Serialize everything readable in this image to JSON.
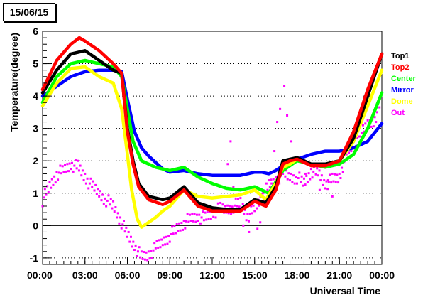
{
  "chart_data": {
    "type": "scatter",
    "title": "15/06/15",
    "xlabel": "Universal Time",
    "ylabel": "Temperature(degree)",
    "xlim": [
      0,
      24
    ],
    "ylim": [
      -1.2,
      6
    ],
    "x_ticks": [
      0,
      3,
      6,
      9,
      12,
      15,
      18,
      21,
      24
    ],
    "x_tick_labels": [
      "00:00",
      "03:00",
      "06:00",
      "09:00",
      "12:00",
      "15:00",
      "18:00",
      "21:00",
      "00:00"
    ],
    "y_ticks": [
      -1,
      0,
      1,
      2,
      3,
      4,
      5,
      6
    ],
    "y_tick_labels": [
      "-1",
      "0",
      "1",
      "2",
      "3",
      "4",
      "5",
      "6"
    ],
    "grid": "horizontal dotted",
    "zero_line": true,
    "legend_position": "right",
    "series": [
      {
        "name": "Top1",
        "color": "#000000",
        "x": [
          0,
          1,
          2,
          3,
          4,
          5,
          5.6,
          6,
          6.4,
          6.8,
          7.5,
          8.5,
          9,
          10,
          11,
          12,
          13,
          14,
          15,
          15.8,
          16.5,
          17,
          17.5,
          18,
          19,
          20,
          21,
          22,
          23,
          24
        ],
        "y": [
          4.1,
          4.8,
          5.3,
          5.4,
          5.1,
          4.8,
          4.7,
          3.0,
          2.0,
          1.3,
          0.9,
          0.8,
          0.85,
          1.2,
          0.7,
          0.55,
          0.5,
          0.5,
          0.8,
          0.7,
          1.2,
          2.0,
          2.05,
          2.1,
          1.9,
          1.9,
          2.0,
          2.7,
          4.0,
          5.3
        ]
      },
      {
        "name": "Top2",
        "color": "#ff0000",
        "x": [
          0,
          1,
          2,
          2.6,
          3,
          4,
          5,
          5.6,
          6,
          6.4,
          6.8,
          7.5,
          8.5,
          9,
          10,
          11,
          12,
          13,
          14,
          15,
          15.8,
          16.5,
          17,
          17.5,
          18,
          19,
          20,
          21,
          22,
          23,
          24
        ],
        "y": [
          4.2,
          5.1,
          5.6,
          5.8,
          5.7,
          5.4,
          5.0,
          4.7,
          2.9,
          1.9,
          1.2,
          0.8,
          0.65,
          0.75,
          1.1,
          0.6,
          0.45,
          0.45,
          0.45,
          0.75,
          0.6,
          1.1,
          1.9,
          2.0,
          2.05,
          1.85,
          1.85,
          2.0,
          2.9,
          4.2,
          5.3
        ]
      },
      {
        "name": "Center",
        "color": "#00ff00",
        "x": [
          0,
          1,
          2,
          3,
          4,
          5,
          5.6,
          6,
          6.4,
          7,
          8,
          9,
          10,
          11,
          12,
          13,
          14,
          15,
          16,
          17,
          18,
          19,
          20,
          21,
          22,
          23,
          24
        ],
        "y": [
          3.8,
          4.6,
          5.0,
          5.1,
          5.0,
          4.9,
          4.6,
          3.6,
          2.6,
          2.0,
          1.8,
          1.7,
          1.8,
          1.5,
          1.3,
          1.15,
          1.1,
          1.2,
          1.0,
          1.7,
          2.0,
          1.9,
          1.8,
          1.9,
          2.2,
          3.0,
          4.1
        ]
      },
      {
        "name": "Mirror",
        "color": "#0000ff",
        "x": [
          0,
          1,
          2,
          3,
          4,
          5,
          5.6,
          6,
          6.5,
          7,
          7.5,
          8,
          8.5,
          9,
          10,
          11,
          12,
          13,
          14,
          15,
          15.5,
          16,
          16.5,
          17,
          17.5,
          18,
          19,
          20,
          21,
          22,
          23,
          24
        ],
        "y": [
          4.0,
          4.3,
          4.6,
          4.75,
          4.8,
          4.8,
          4.75,
          3.9,
          2.9,
          2.4,
          2.15,
          1.95,
          1.75,
          1.65,
          1.7,
          1.6,
          1.55,
          1.55,
          1.55,
          1.65,
          1.65,
          1.6,
          1.7,
          1.85,
          1.95,
          2.05,
          2.2,
          2.3,
          2.3,
          2.4,
          2.6,
          3.15
        ]
      },
      {
        "name": "Dome",
        "color": "#ffff00",
        "x": [
          0,
          1,
          2,
          3,
          4,
          5,
          5.6,
          6,
          6.3,
          6.7,
          7,
          7.5,
          8,
          8.5,
          9,
          10,
          11,
          12,
          13,
          14,
          15,
          15.8,
          16.5,
          17,
          17.5,
          18,
          19,
          20,
          21,
          22,
          23,
          24
        ],
        "y": [
          3.7,
          4.4,
          4.85,
          4.9,
          4.6,
          4.4,
          3.6,
          2.2,
          1.1,
          0.2,
          -0.05,
          0.1,
          0.25,
          0.45,
          0.6,
          1.1,
          0.9,
          0.85,
          0.9,
          0.95,
          1.1,
          0.8,
          1.3,
          1.8,
          1.9,
          2.05,
          1.9,
          1.9,
          2.0,
          2.6,
          3.7,
          4.8
        ]
      },
      {
        "name": "Out",
        "color": "#ff00ff",
        "x": [
          0,
          0.5,
          1,
          1.5,
          2,
          2.5,
          3,
          3.5,
          4,
          4.5,
          5,
          5.5,
          6,
          6.5,
          7,
          7.5,
          8,
          8.5,
          9,
          9.5,
          10,
          10.5,
          11,
          11.5,
          12,
          12.5,
          13,
          13.5,
          14,
          14.5,
          15,
          15.5,
          16,
          16.5,
          17,
          17.5,
          18,
          18.5,
          19,
          19.5,
          20,
          20.5,
          21,
          21.5,
          22,
          22.5,
          23,
          23.5,
          24
        ],
        "y": [
          0.8,
          1.2,
          1.6,
          1.7,
          1.9,
          1.8,
          1.5,
          1.2,
          1.0,
          0.8,
          0.6,
          0.2,
          -0.3,
          -0.6,
          -1.0,
          -0.9,
          -0.7,
          -0.5,
          -0.3,
          -0.1,
          0.1,
          0.2,
          0.3,
          0.2,
          0.4,
          0.5,
          0.5,
          0.6,
          0.7,
          0.3,
          0.5,
          0.9,
          1.2,
          1.4,
          1.6,
          1.5,
          1.5,
          1.3,
          1.7,
          1.6,
          1.3,
          1.4,
          1.5,
          2.2,
          2.5,
          2.8,
          3.1,
          3.3,
          3.9
        ]
      }
    ],
    "out_scatter_extra": {
      "x": [
        13.1,
        13.3,
        13.5,
        15.2,
        15.4,
        16.2,
        16.4,
        16.6,
        16.8,
        17.1,
        17.3,
        17.6,
        18.2,
        18.6,
        19.2,
        19.6,
        20.2,
        20.5,
        14.2,
        14.6
      ],
      "y": [
        1.9,
        2.6,
        1.2,
        -0.1,
        0.1,
        1.3,
        2.3,
        3.2,
        3.6,
        4.3,
        3.4,
        2.6,
        2.1,
        1.6,
        1.8,
        1.1,
        1.4,
        0.9,
        0.0,
        -0.2
      ]
    }
  }
}
